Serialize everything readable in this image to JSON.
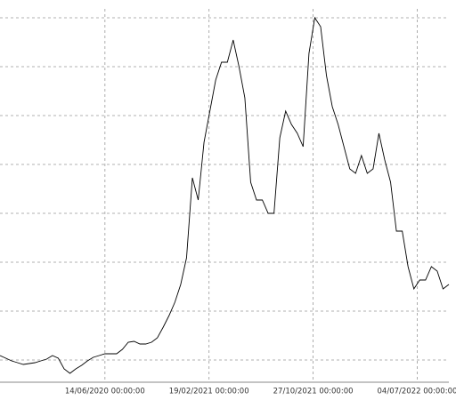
{
  "chart_data": {
    "type": "line",
    "x": [
      "2019-10-06",
      "2019-10-20",
      "2019-11-03",
      "2019-11-17",
      "2019-12-01",
      "2019-12-15",
      "2019-12-29",
      "2020-01-12",
      "2020-01-26",
      "2020-02-09",
      "2020-02-23",
      "2020-03-08",
      "2020-03-22",
      "2020-04-05",
      "2020-04-19",
      "2020-05-03",
      "2020-05-17",
      "2020-05-31",
      "2020-06-14",
      "2020-06-28",
      "2020-07-12",
      "2020-07-26",
      "2020-08-09",
      "2020-08-23",
      "2020-09-06",
      "2020-09-20",
      "2020-10-04",
      "2020-10-18",
      "2020-11-01",
      "2020-11-15",
      "2020-11-29",
      "2020-12-13",
      "2020-12-27",
      "2021-01-10",
      "2021-01-24",
      "2021-02-07",
      "2021-02-21",
      "2021-03-07",
      "2021-03-21",
      "2021-04-04",
      "2021-04-18",
      "2021-05-02",
      "2021-05-16",
      "2021-05-30",
      "2021-06-13",
      "2021-06-27",
      "2021-07-11",
      "2021-07-25",
      "2021-08-08",
      "2021-08-22",
      "2021-09-05",
      "2021-09-19",
      "2021-10-03",
      "2021-10-17",
      "2021-10-31",
      "2021-11-14",
      "2021-11-28",
      "2021-12-12",
      "2021-12-26",
      "2022-01-09",
      "2022-01-23",
      "2022-02-06",
      "2022-02-20",
      "2022-03-06",
      "2022-03-20",
      "2022-04-03",
      "2022-04-17",
      "2022-05-01",
      "2022-05-15",
      "2022-05-29",
      "2022-06-12",
      "2022-06-26",
      "2022-07-10",
      "2022-07-24",
      "2022-08-07",
      "2022-08-21",
      "2022-09-04",
      "2022-09-18"
    ],
    "values": [
      30,
      27,
      24,
      22,
      20,
      21,
      22,
      24,
      26,
      30,
      27,
      15,
      10,
      15,
      19,
      24,
      28,
      30,
      32,
      32,
      32,
      37,
      45,
      46,
      43,
      43,
      45,
      50,
      62,
      75,
      90,
      110,
      140,
      230,
      205,
      270,
      305,
      340,
      360,
      360,
      385,
      355,
      320,
      225,
      205,
      205,
      190,
      190,
      275,
      305,
      290,
      280,
      265,
      370,
      410,
      400,
      345,
      310,
      290,
      265,
      240,
      235,
      255,
      235,
      240,
      280,
      250,
      225,
      170,
      170,
      130,
      105,
      115,
      115,
      130,
      125,
      105,
      110
    ],
    "color": "#000000",
    "xlim": [
      "2019-10-06",
      "2022-09-18"
    ],
    "xticks": [
      {
        "value": "2020-06-14",
        "label": "14/06/2020 00:00:00"
      },
      {
        "value": "2021-02-19",
        "label": "19/02/2021 00:00:00"
      },
      {
        "value": "2021-10-27",
        "label": "27/10/2021 00:00:00"
      },
      {
        "value": "2022-07-04",
        "label": "04/07/2022 00:00:00"
      }
    ],
    "ylim": [
      0,
      420
    ],
    "ygrid": [
      25,
      80,
      135,
      190,
      245,
      300,
      355,
      410
    ],
    "grid": true
  }
}
